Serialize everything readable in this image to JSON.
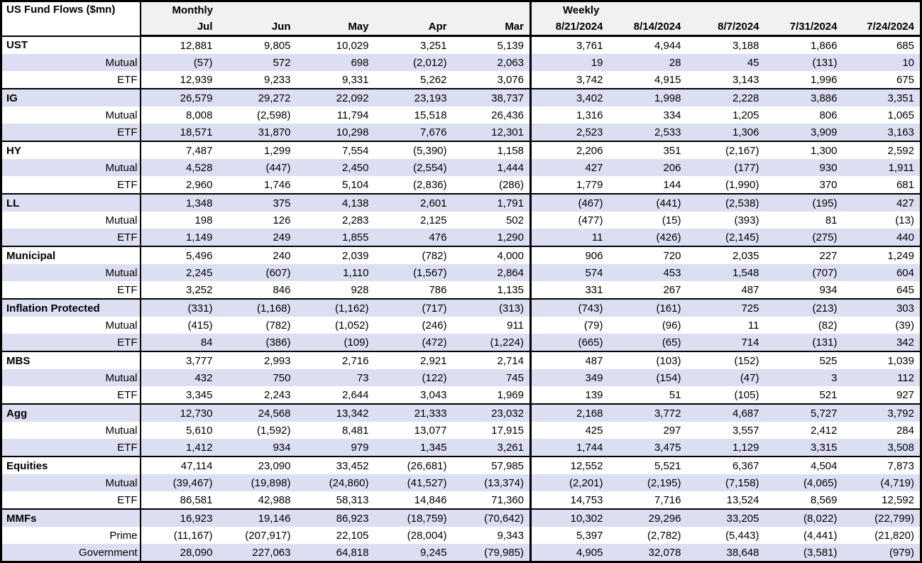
{
  "title": "US Fund Flows ($mn)",
  "colors": {
    "stripe": "#DBDFF1",
    "header_bg": "#F1F1F1",
    "border": "#000000",
    "text": "#000000"
  },
  "chart_data": {
    "type": "table",
    "title": "US Fund Flows ($mn)",
    "units": "$mn",
    "column_groups": [
      {
        "label": "Monthly",
        "columns": [
          "Jul",
          "Jun",
          "May",
          "Apr",
          "Mar"
        ]
      },
      {
        "label": "Weekly",
        "columns": [
          "8/21/2024",
          "8/14/2024",
          "8/7/2024",
          "7/31/2024",
          "7/24/2024"
        ]
      }
    ],
    "row_groups": [
      {
        "label": "UST",
        "monthly": [
          "12,881",
          "9,805",
          "10,029",
          "3,251",
          "5,139"
        ],
        "weekly": [
          "3,761",
          "4,944",
          "3,188",
          "1,866",
          "685"
        ],
        "subrows": [
          {
            "label": "Mutual",
            "monthly": [
              "(57)",
              "572",
              "698",
              "(2,012)",
              "2,063"
            ],
            "weekly": [
              "19",
              "28",
              "45",
              "(131)",
              "10"
            ]
          },
          {
            "label": "ETF",
            "monthly": [
              "12,939",
              "9,233",
              "9,331",
              "5,262",
              "3,076"
            ],
            "weekly": [
              "3,742",
              "4,915",
              "3,143",
              "1,996",
              "675"
            ]
          }
        ]
      },
      {
        "label": "IG",
        "monthly": [
          "26,579",
          "29,272",
          "22,092",
          "23,193",
          "38,737"
        ],
        "weekly": [
          "3,402",
          "1,998",
          "2,228",
          "3,886",
          "3,351"
        ],
        "subrows": [
          {
            "label": "Mutual",
            "monthly": [
              "8,008",
              "(2,598)",
              "11,794",
              "15,518",
              "26,436"
            ],
            "weekly": [
              "1,316",
              "334",
              "1,205",
              "806",
              "1,065"
            ]
          },
          {
            "label": "ETF",
            "monthly": [
              "18,571",
              "31,870",
              "10,298",
              "7,676",
              "12,301"
            ],
            "weekly": [
              "2,523",
              "2,533",
              "1,306",
              "3,909",
              "3,163"
            ]
          }
        ]
      },
      {
        "label": "HY",
        "monthly": [
          "7,487",
          "1,299",
          "7,554",
          "(5,390)",
          "1,158"
        ],
        "weekly": [
          "2,206",
          "351",
          "(2,167)",
          "1,300",
          "2,592"
        ],
        "subrows": [
          {
            "label": "Mutual",
            "monthly": [
              "4,528",
              "(447)",
              "2,450",
              "(2,554)",
              "1,444"
            ],
            "weekly": [
              "427",
              "206",
              "(177)",
              "930",
              "1,911"
            ]
          },
          {
            "label": "ETF",
            "monthly": [
              "2,960",
              "1,746",
              "5,104",
              "(2,836)",
              "(286)"
            ],
            "weekly": [
              "1,779",
              "144",
              "(1,990)",
              "370",
              "681"
            ]
          }
        ]
      },
      {
        "label": "LL",
        "monthly": [
          "1,348",
          "375",
          "4,138",
          "2,601",
          "1,791"
        ],
        "weekly": [
          "(467)",
          "(441)",
          "(2,538)",
          "(195)",
          "427"
        ],
        "subrows": [
          {
            "label": "Mutual",
            "monthly": [
              "198",
              "126",
              "2,283",
              "2,125",
              "502"
            ],
            "weekly": [
              "(477)",
              "(15)",
              "(393)",
              "81",
              "(13)"
            ]
          },
          {
            "label": "ETF",
            "monthly": [
              "1,149",
              "249",
              "1,855",
              "476",
              "1,290"
            ],
            "weekly": [
              "11",
              "(426)",
              "(2,145)",
              "(275)",
              "440"
            ]
          }
        ]
      },
      {
        "label": "Municipal",
        "monthly": [
          "5,496",
          "240",
          "2,039",
          "(782)",
          "4,000"
        ],
        "weekly": [
          "906",
          "720",
          "2,035",
          "227",
          "1,249"
        ],
        "subrows": [
          {
            "label": "Mutual",
            "monthly": [
              "2,245",
              "(607)",
              "1,110",
              "(1,567)",
              "2,864"
            ],
            "weekly": [
              "574",
              "453",
              "1,548",
              "(707)",
              "604"
            ]
          },
          {
            "label": "ETF",
            "monthly": [
              "3,252",
              "846",
              "928",
              "786",
              "1,135"
            ],
            "weekly": [
              "331",
              "267",
              "487",
              "934",
              "645"
            ]
          }
        ]
      },
      {
        "label": "Inflation Protected",
        "monthly": [
          "(331)",
          "(1,168)",
          "(1,162)",
          "(717)",
          "(313)"
        ],
        "weekly": [
          "(743)",
          "(161)",
          "725",
          "(213)",
          "303"
        ],
        "subrows": [
          {
            "label": "Mutual",
            "monthly": [
              "(415)",
              "(782)",
              "(1,052)",
              "(246)",
              "911"
            ],
            "weekly": [
              "(79)",
              "(96)",
              "11",
              "(82)",
              "(39)"
            ]
          },
          {
            "label": "ETF",
            "monthly": [
              "84",
              "(386)",
              "(109)",
              "(472)",
              "(1,224)"
            ],
            "weekly": [
              "(665)",
              "(65)",
              "714",
              "(131)",
              "342"
            ]
          }
        ]
      },
      {
        "label": "MBS",
        "monthly": [
          "3,777",
          "2,993",
          "2,716",
          "2,921",
          "2,714"
        ],
        "weekly": [
          "487",
          "(103)",
          "(152)",
          "525",
          "1,039"
        ],
        "subrows": [
          {
            "label": "Mutual",
            "monthly": [
              "432",
              "750",
              "73",
              "(122)",
              "745"
            ],
            "weekly": [
              "349",
              "(154)",
              "(47)",
              "3",
              "112"
            ]
          },
          {
            "label": "ETF",
            "monthly": [
              "3,345",
              "2,243",
              "2,644",
              "3,043",
              "1,969"
            ],
            "weekly": [
              "139",
              "51",
              "(105)",
              "521",
              "927"
            ]
          }
        ]
      },
      {
        "label": "Agg",
        "monthly": [
          "12,730",
          "24,568",
          "13,342",
          "21,333",
          "23,032"
        ],
        "weekly": [
          "2,168",
          "3,772",
          "4,687",
          "5,727",
          "3,792"
        ],
        "subrows": [
          {
            "label": "Mutual",
            "monthly": [
              "5,610",
              "(1,592)",
              "8,481",
              "13,077",
              "17,915"
            ],
            "weekly": [
              "425",
              "297",
              "3,557",
              "2,412",
              "284"
            ]
          },
          {
            "label": "ETF",
            "monthly": [
              "1,412",
              "934",
              "979",
              "1,345",
              "3,261"
            ],
            "weekly": [
              "1,744",
              "3,475",
              "1,129",
              "3,315",
              "3,508"
            ]
          }
        ]
      },
      {
        "label": "Equities",
        "monthly": [
          "47,114",
          "23,090",
          "33,452",
          "(26,681)",
          "57,985"
        ],
        "weekly": [
          "12,552",
          "5,521",
          "6,367",
          "4,504",
          "7,873"
        ],
        "subrows": [
          {
            "label": "Mutual",
            "monthly": [
              "(39,467)",
              "(19,898)",
              "(24,860)",
              "(41,527)",
              "(13,374)"
            ],
            "weekly": [
              "(2,201)",
              "(2,195)",
              "(7,158)",
              "(4,065)",
              "(4,719)"
            ]
          },
          {
            "label": "ETF",
            "monthly": [
              "86,581",
              "42,988",
              "58,313",
              "14,846",
              "71,360"
            ],
            "weekly": [
              "14,753",
              "7,716",
              "13,524",
              "8,569",
              "12,592"
            ]
          }
        ]
      },
      {
        "label": "MMFs",
        "monthly": [
          "16,923",
          "19,146",
          "86,923",
          "(18,759)",
          "(70,642)"
        ],
        "weekly": [
          "10,302",
          "29,296",
          "33,205",
          "(8,022)",
          "(22,799)"
        ],
        "subrows": [
          {
            "label": "Prime",
            "monthly": [
              "(11,167)",
              "(207,917)",
              "22,105",
              "(28,004)",
              "9,343"
            ],
            "weekly": [
              "5,397",
              "(2,782)",
              "(5,443)",
              "(4,441)",
              "(21,820)"
            ]
          },
          {
            "label": "Government",
            "monthly": [
              "28,090",
              "227,063",
              "64,818",
              "9,245",
              "(79,985)"
            ],
            "weekly": [
              "4,905",
              "32,078",
              "38,648",
              "(3,581)",
              "(979)"
            ]
          }
        ]
      }
    ]
  }
}
